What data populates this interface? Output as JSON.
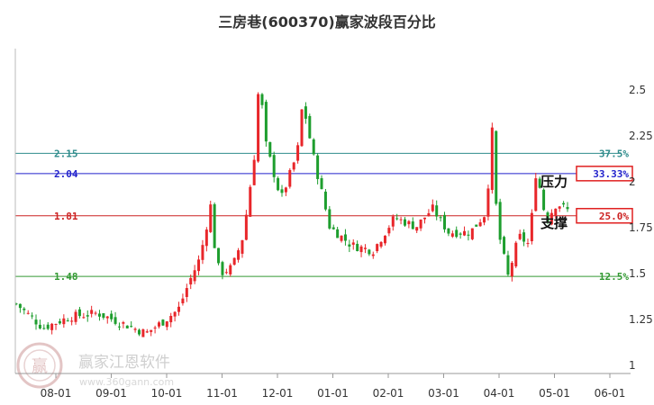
{
  "chart_data": {
    "type": "candlestick",
    "title": "三房巷(600370)赢家波段百分比",
    "x_ticks": [
      "08-01",
      "09-01",
      "10-01",
      "11-01",
      "12-01",
      "01-01",
      "02-01",
      "03-01",
      "04-01",
      "05-01",
      "06-01"
    ],
    "y_ticks": [
      "2.5",
      "2.25",
      "2",
      "1.75",
      "1.5",
      "1.25",
      "1"
    ],
    "ylim": [
      1,
      2.65
    ],
    "levels": [
      {
        "price": "2.15",
        "value": 2.15,
        "percent": "37.5%",
        "color": "#2e8b8b"
      },
      {
        "price": "2.04",
        "value": 2.04,
        "percent": "33.33%",
        "color": "#2222cc"
      },
      {
        "price": "1.81",
        "value": 1.81,
        "percent": "25.0%",
        "color": "#cc2222"
      },
      {
        "price": "1.48",
        "value": 1.48,
        "percent": "12.5%",
        "color": "#339933"
      }
    ],
    "annotations": {
      "resistance": "压力",
      "support": "支撑"
    },
    "watermark": {
      "brand": "赢家江恩软件",
      "url": "www.360gann.com",
      "seal": "赢"
    },
    "up_color": "#e8262a",
    "down_color": "#1e9e2e",
    "price_path": [
      [
        0,
        1.33
      ],
      [
        5,
        1.2
      ],
      [
        10,
        1.26
      ],
      [
        15,
        1.28
      ],
      [
        20,
        1.22
      ],
      [
        24,
        1.17
      ],
      [
        27,
        1.23
      ],
      [
        30,
        1.3
      ],
      [
        32,
        1.45
      ],
      [
        34,
        1.58
      ],
      [
        36,
        1.87
      ],
      [
        37,
        1.55
      ],
      [
        38,
        1.5
      ],
      [
        40,
        1.53
      ],
      [
        42,
        1.7
      ],
      [
        44,
        2.12
      ],
      [
        45,
        2.58
      ],
      [
        46,
        2.22
      ],
      [
        49,
        1.9
      ],
      [
        52,
        2.15
      ],
      [
        53,
        2.43
      ],
      [
        55,
        2.13
      ],
      [
        58,
        1.75
      ],
      [
        62,
        1.65
      ],
      [
        66,
        1.62
      ],
      [
        70,
        1.8
      ],
      [
        74,
        1.75
      ],
      [
        77,
        1.85
      ],
      [
        80,
        1.72
      ],
      [
        84,
        1.72
      ],
      [
        87,
        1.83
      ],
      [
        88,
        2.3
      ],
      [
        89,
        1.75
      ],
      [
        91,
        1.48
      ],
      [
        93,
        1.7
      ],
      [
        95,
        1.65
      ],
      [
        96,
        2.05
      ],
      [
        97,
        1.95
      ],
      [
        98,
        1.78
      ],
      [
        100,
        1.88
      ],
      [
        102,
        1.84
      ]
    ]
  }
}
